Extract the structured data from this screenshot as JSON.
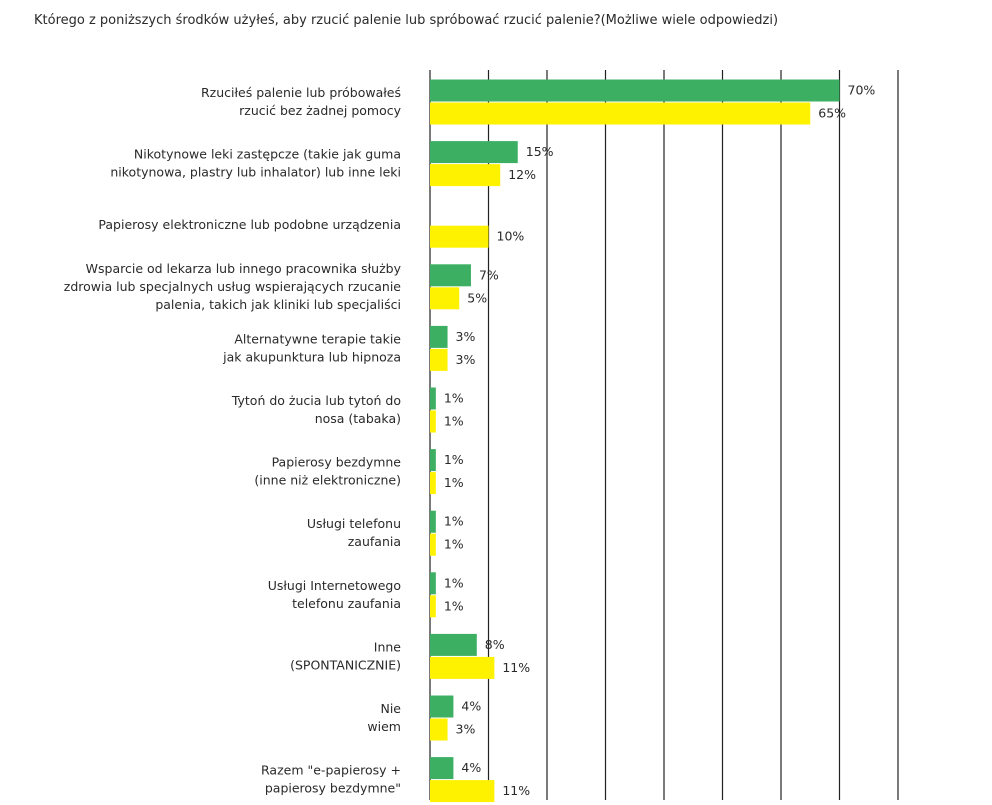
{
  "chart_data": {
    "type": "bar",
    "orientation": "horizontal",
    "title": "Którego z poniższych środków użyłeś, aby rzucić palenie lub spróbować rzucić palenie?(Możliwe wiele odpowiedzi)",
    "xlim": [
      0,
      80
    ],
    "grid": true,
    "colors": {
      "series1": "#3daf63",
      "series2": "#fff200"
    },
    "categories": [
      [
        "Rzuciłeś palenie lub próbowałeś",
        "rzucić bez żadnej pomocy"
      ],
      [
        "Nikotynowe leki zastępcze (takie jak guma",
        "nikotynowa, plastry lub inhalator) lub inne leki"
      ],
      [
        "Papierosy elektroniczne lub podobne urządzenia"
      ],
      [
        "Wsparcie od lekarza lub innego pracownika służby",
        "zdrowia lub specjalnych usług wspierających rzucanie",
        "palenia, takich jak kliniki lub specjaliści"
      ],
      [
        "Alternatywne terapie takie",
        "jak akupunktura lub hipnoza"
      ],
      [
        "Tytoń do żucia  lub tytoń do",
        "nosa (tabaka)"
      ],
      [
        "Papierosy bezdymne",
        "(inne niż elektroniczne)"
      ],
      [
        "Usługi telefonu",
        "zaufania"
      ],
      [
        "Usługi Internetowego",
        "telefonu zaufania"
      ],
      [
        "Inne",
        "(SPONTANICZNIE)"
      ],
      [
        "Nie",
        "wiem"
      ],
      [
        "Razem \"e-papierosy +",
        "papierosy bezdymne\""
      ]
    ],
    "series": [
      {
        "values": [
          70,
          15,
          null,
          7,
          3,
          1,
          1,
          1,
          1,
          8,
          4,
          4
        ],
        "labels": [
          "70%",
          "15%",
          "",
          "7%",
          "3%",
          "1%",
          "1%",
          "1%",
          "1%",
          "8%",
          "4%",
          "4%"
        ]
      },
      {
        "values": [
          65,
          12,
          10,
          5,
          3,
          1,
          1,
          1,
          1,
          11,
          3,
          11
        ],
        "labels": [
          "65%",
          "12%",
          "10%",
          "5%",
          "3%",
          "1%",
          "1%",
          "1%",
          "1%",
          "11%",
          "3%",
          "11%"
        ]
      }
    ]
  }
}
